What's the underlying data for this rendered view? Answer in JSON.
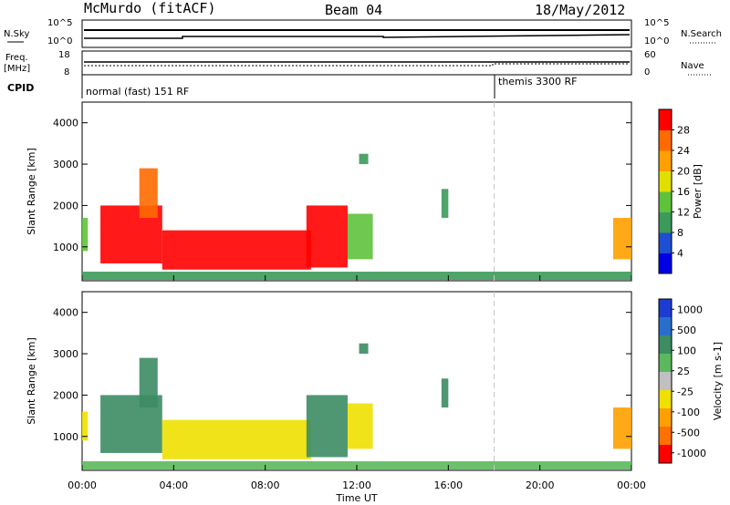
{
  "header": {
    "station": "McMurdo (fitACF)",
    "beam": "Beam 04",
    "date": "18/May/2012"
  },
  "noise_panel": {
    "left_label": "N.Sky",
    "right_label": "N.Search",
    "left_ticks": [
      "10^5",
      "10^0"
    ],
    "right_ticks": [
      "10^5",
      "10^0"
    ]
  },
  "freq_panel": {
    "left_label_line1": "Freq.",
    "left_label_line2": "[MHz]",
    "right_label": "Nave",
    "left_ticks": [
      "18",
      "8"
    ],
    "right_ticks": [
      "60",
      "0"
    ]
  },
  "cpid": {
    "label": "CPID",
    "modes": [
      {
        "name": "normal (fast) 151 RF",
        "start_hour": 0
      },
      {
        "name": "themis 3300 RF",
        "start_hour": 18
      }
    ]
  },
  "colors": {
    "power_scale": [
      "#0000e6",
      "#1e4fd2",
      "#3c9a5a",
      "#5fc23c",
      "#e0e000",
      "#ffa000",
      "#ff6a00",
      "#ff0000"
    ],
    "velocity_scale": [
      "#1e3cd2",
      "#2a6ecb",
      "#3c8c64",
      "#5cb85c",
      "#c0c0c0",
      "#f0e000",
      "#ffa000",
      "#ff7000",
      "#ff0000"
    ]
  },
  "chart_data": [
    {
      "type": "heatmap",
      "name": "power",
      "ylabel": "Slant Range [km]",
      "colorbar_label": "Power [dB]",
      "colorbar_ticks": [
        "4",
        "8",
        "12",
        "16",
        "20",
        "24",
        "28"
      ],
      "ylim": [
        180,
        4500
      ],
      "yticks": [
        "1000",
        "2000",
        "3000",
        "4000"
      ],
      "ytick_values": [
        1000,
        2000,
        3000,
        4000
      ],
      "xlim": [
        0,
        24
      ],
      "regions": [
        {
          "t0": 0.0,
          "t1": 0.25,
          "r0": 900,
          "r1": 1700,
          "value": 12
        },
        {
          "t0": 0.8,
          "t1": 3.5,
          "r0": 600,
          "r1": 2000,
          "value": 28
        },
        {
          "t0": 2.5,
          "t1": 3.3,
          "r0": 1700,
          "r1": 2900,
          "value": 24
        },
        {
          "t0": 3.5,
          "t1": 10.0,
          "r0": 450,
          "r1": 1400,
          "value": 30
        },
        {
          "t0": 9.8,
          "t1": 11.6,
          "r0": 500,
          "r1": 2000,
          "value": 28
        },
        {
          "t0": 11.6,
          "t1": 12.7,
          "r0": 700,
          "r1": 1800,
          "value": 12
        },
        {
          "t0": 12.1,
          "t1": 12.5,
          "r0": 3000,
          "r1": 3250,
          "value": 10
        },
        {
          "t0": 15.7,
          "t1": 16.0,
          "r0": 1700,
          "r1": 2400,
          "value": 8
        },
        {
          "t0": 23.2,
          "t1": 24.0,
          "r0": 700,
          "r1": 1700,
          "value": 20
        },
        {
          "t0": 0.0,
          "t1": 24.0,
          "r0": 200,
          "r1": 400,
          "value": 8
        }
      ]
    },
    {
      "type": "heatmap",
      "name": "velocity",
      "ylabel": "Slant Range [km]",
      "colorbar_label": "Velocity [m s-1]",
      "colorbar_ticks": [
        "1000",
        "500",
        "100",
        "25",
        "-25",
        "-100",
        "-500",
        "-1000"
      ],
      "ylim": [
        180,
        4500
      ],
      "yticks": [
        "1000",
        "2000",
        "3000",
        "4000"
      ],
      "ytick_values": [
        1000,
        2000,
        3000,
        4000
      ],
      "xlim": [
        0,
        24
      ],
      "regions": [
        {
          "t0": 0.0,
          "t1": 0.25,
          "r0": 900,
          "r1": 1600,
          "value": -100
        },
        {
          "t0": 0.8,
          "t1": 3.5,
          "r0": 600,
          "r1": 2000,
          "value": 100
        },
        {
          "t0": 2.5,
          "t1": 3.3,
          "r0": 1700,
          "r1": 2900,
          "value": 100
        },
        {
          "t0": 3.5,
          "t1": 10.0,
          "r0": 450,
          "r1": 1400,
          "value": -100
        },
        {
          "t0": 9.8,
          "t1": 11.6,
          "r0": 500,
          "r1": 2000,
          "value": 100
        },
        {
          "t0": 11.6,
          "t1": 12.7,
          "r0": 700,
          "r1": 1800,
          "value": -100
        },
        {
          "t0": 12.1,
          "t1": 12.5,
          "r0": 3000,
          "r1": 3250,
          "value": 100
        },
        {
          "t0": 15.7,
          "t1": 16.0,
          "r0": 1700,
          "r1": 2400,
          "value": 100
        },
        {
          "t0": 23.2,
          "t1": 24.0,
          "r0": 700,
          "r1": 1700,
          "value": -500
        },
        {
          "t0": 0.0,
          "t1": 24.0,
          "r0": 200,
          "r1": 400,
          "value": 25
        }
      ]
    }
  ],
  "x_axis": {
    "label": "Time UT",
    "ticks": [
      "00:00",
      "04:00",
      "08:00",
      "12:00",
      "16:00",
      "20:00",
      "00:00"
    ],
    "tick_hours": [
      0,
      4,
      8,
      12,
      16,
      20,
      24
    ]
  }
}
